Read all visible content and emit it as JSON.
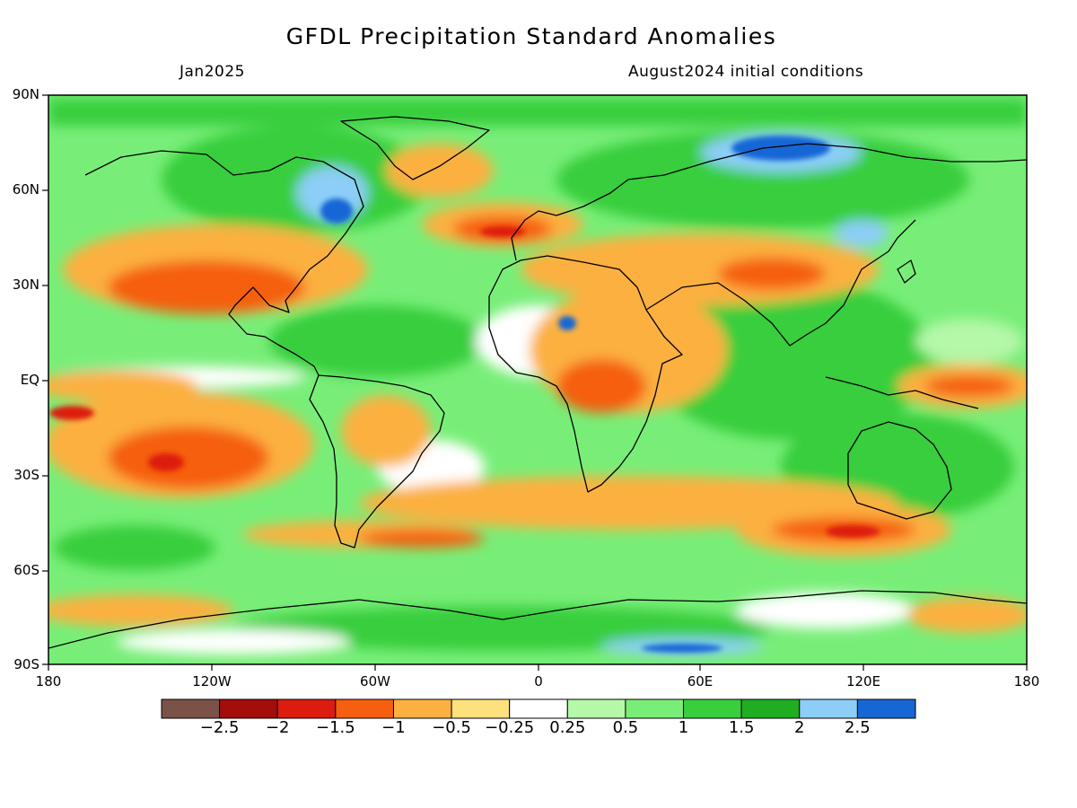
{
  "header": {
    "title": "GFDL Precipitation Standard Anomalies",
    "valid_month": "Jan2025",
    "initial_conditions": "August2024 initial conditions"
  },
  "axes": {
    "lat_labels": [
      "90N",
      "60N",
      "30N",
      "EQ",
      "30S",
      "60S",
      "90S"
    ],
    "lon_labels": [
      "180",
      "120W",
      "60W",
      "0",
      "60E",
      "120E",
      "180"
    ]
  },
  "legend": {
    "colors": [
      "#7b5248",
      "#a50c0c",
      "#dd1c10",
      "#f55f0f",
      "#fcb03f",
      "#fde17c",
      "#ffffff",
      "#b4f8a8",
      "#78ee78",
      "#38ce3c",
      "#1fae22",
      "#8ccef8",
      "#1766d5"
    ],
    "labels": [
      "−2.5",
      "−2",
      "−1.5",
      "−1",
      "−0.5",
      "−0.25",
      "0.25",
      "0.5",
      "1",
      "1.5",
      "2",
      "2.5"
    ]
  }
}
